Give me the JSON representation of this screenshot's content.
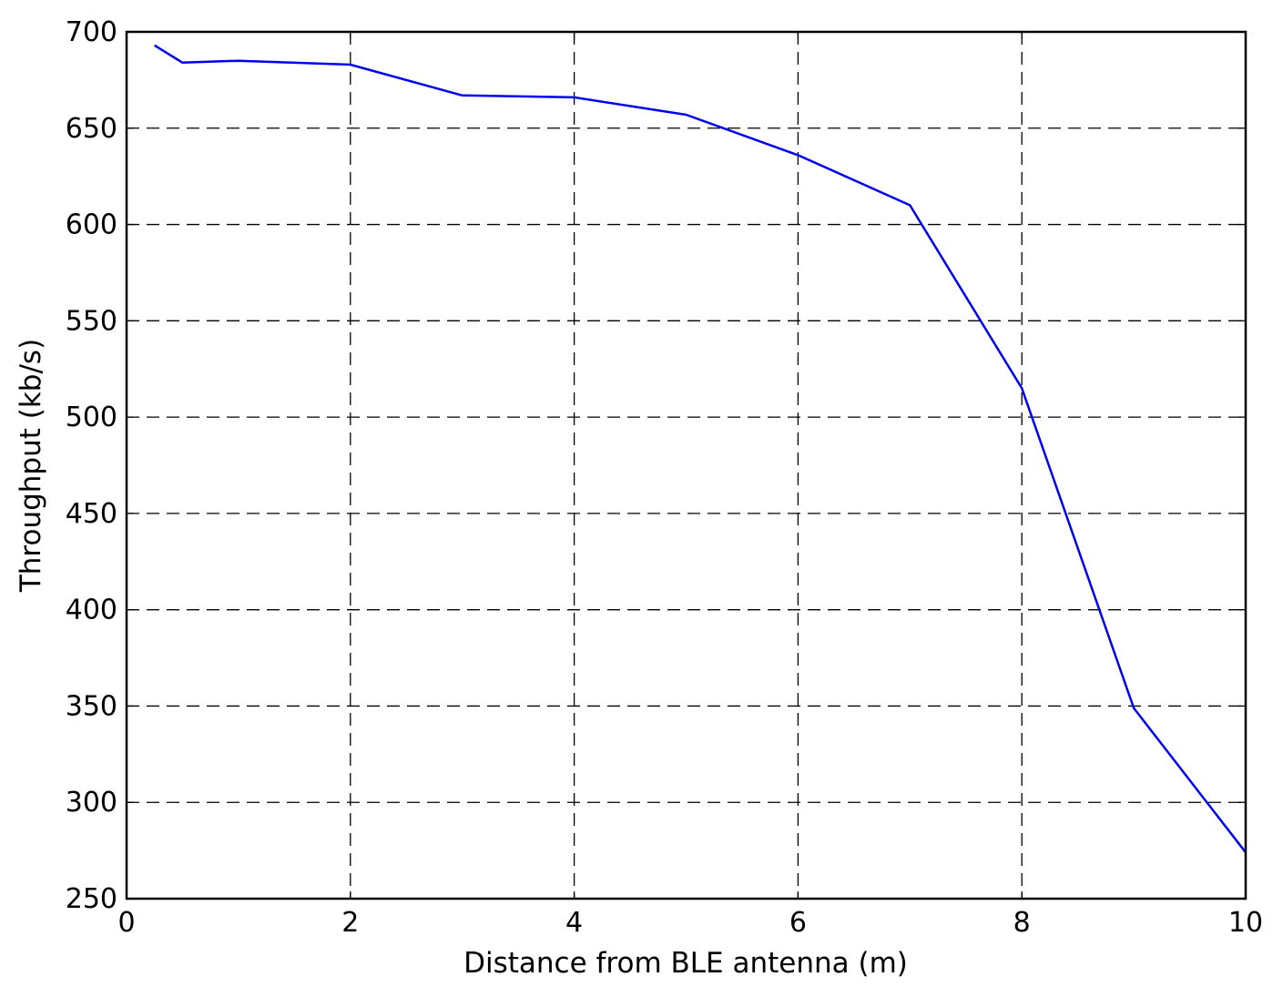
{
  "chart_data": {
    "type": "line",
    "title": "",
    "xlabel": "Distance from BLE antenna (m)",
    "ylabel": "Throughput (kb/s)",
    "xlim": [
      0,
      10
    ],
    "ylim": [
      250,
      700
    ],
    "xticks": [
      "0",
      "2",
      "4",
      "6",
      "8",
      "10"
    ],
    "yticks": [
      "250",
      "300",
      "350",
      "400",
      "450",
      "500",
      "550",
      "600",
      "650",
      "700"
    ],
    "grid": true,
    "grid_style": "dashed",
    "legend": "none",
    "series": [
      {
        "color": "#0000ee",
        "x": [
          0.25,
          0.5,
          1,
          2,
          3,
          4,
          5,
          6,
          7,
          8,
          9,
          10
        ],
        "y": [
          693,
          684,
          685,
          683,
          667,
          666,
          657,
          636,
          610,
          515,
          349,
          274
        ]
      }
    ]
  }
}
